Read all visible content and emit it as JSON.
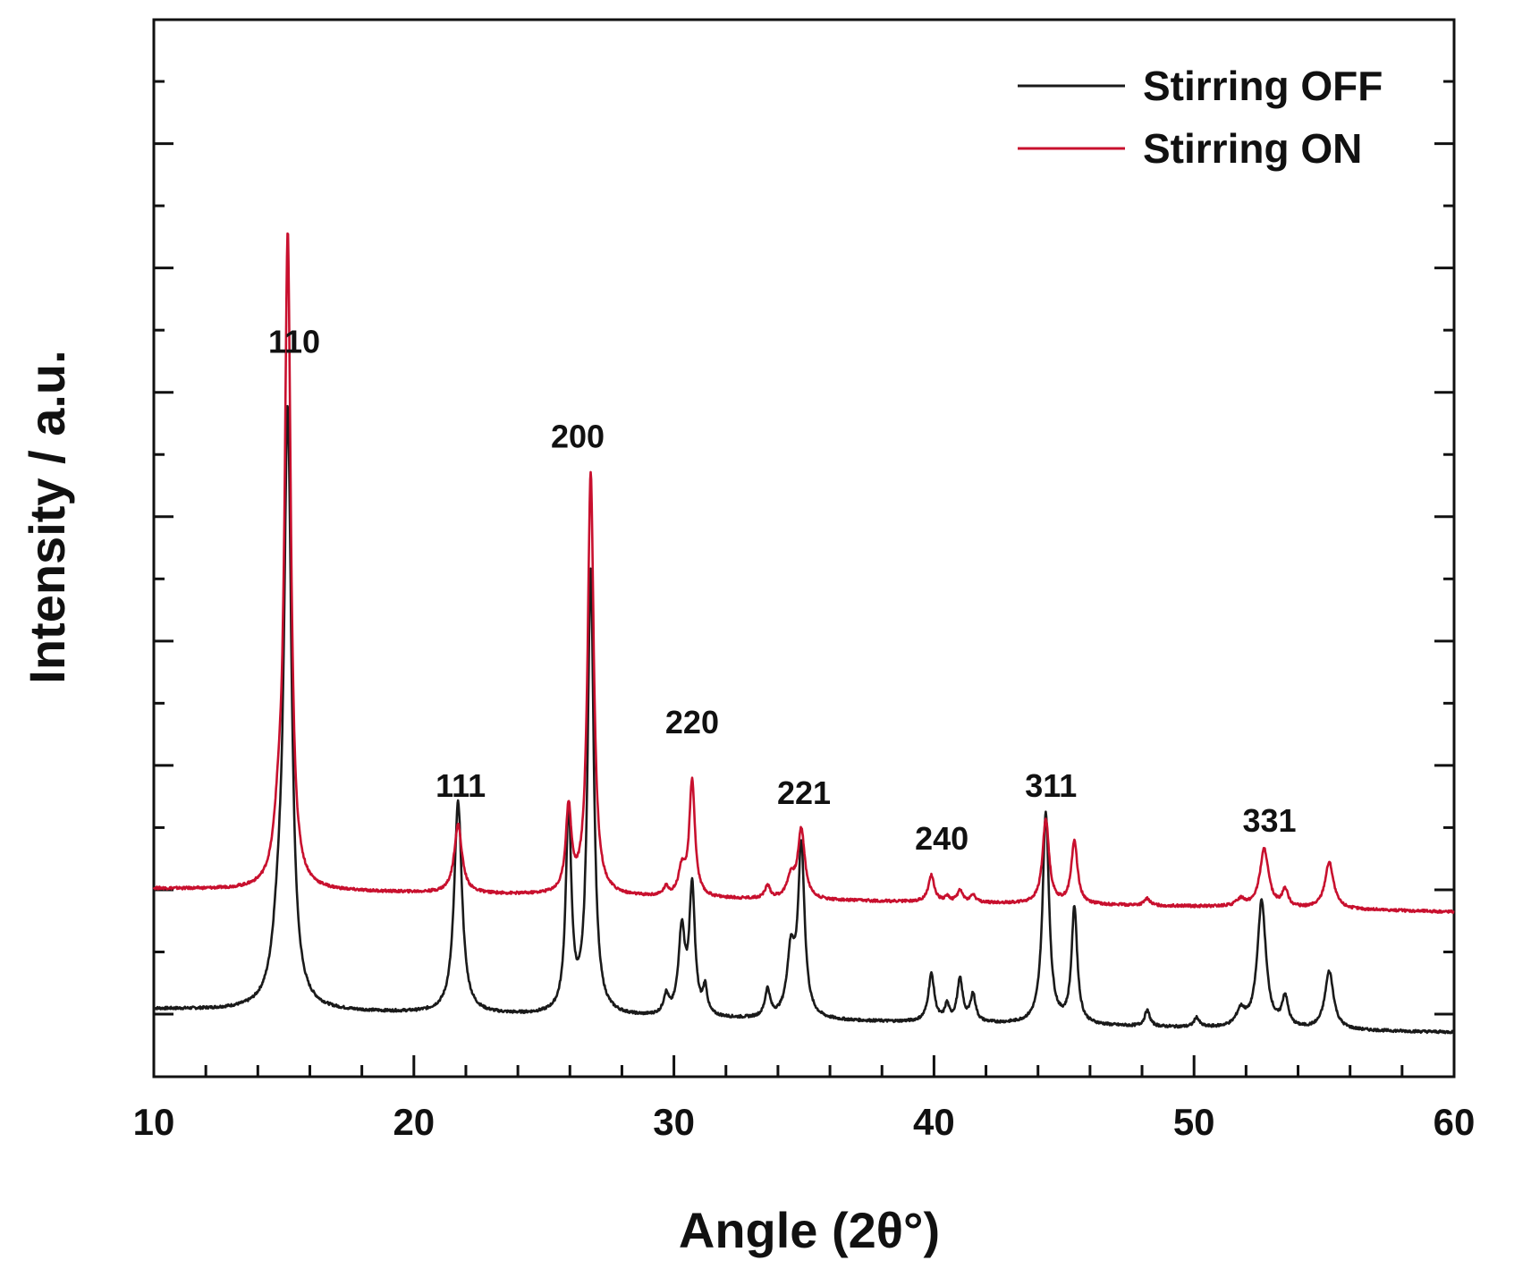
{
  "chart_data": {
    "type": "line",
    "title": "",
    "xlabel": "Angle (2θ°)",
    "ylabel": "Intensity / a.u.",
    "xlim": [
      10,
      60
    ],
    "ylim": [
      0,
      100
    ],
    "x_ticks": [
      "10",
      "20",
      "30",
      "40",
      "50",
      "60"
    ],
    "grid": false,
    "y_tick_labels_shown": false,
    "legend_position": "top-right",
    "series": [
      {
        "name": "Stirring OFF",
        "color": "#1a1a1a",
        "baseline": [
          [
            10,
            6.4
          ],
          [
            20,
            6.0
          ],
          [
            30,
            5.5
          ],
          [
            40,
            5.1
          ],
          [
            50,
            4.6
          ],
          [
            60,
            4.2
          ]
        ],
        "peaks": [
          {
            "x": 14.8,
            "h": 6,
            "w": 0.28
          },
          {
            "x": 15.15,
            "h": 55,
            "w": 0.17
          },
          {
            "x": 21.7,
            "h": 20,
            "w": 0.18
          },
          {
            "x": 25.95,
            "h": 19,
            "w": 0.13
          },
          {
            "x": 26.8,
            "h": 42,
            "w": 0.14
          },
          {
            "x": 29.7,
            "h": 1.8,
            "w": 0.12
          },
          {
            "x": 30.3,
            "h": 8,
            "w": 0.15
          },
          {
            "x": 30.7,
            "h": 12,
            "w": 0.13
          },
          {
            "x": 31.2,
            "h": 2.5,
            "w": 0.1
          },
          {
            "x": 33.6,
            "h": 2.6,
            "w": 0.12
          },
          {
            "x": 34.5,
            "h": 6,
            "w": 0.18
          },
          {
            "x": 34.9,
            "h": 16,
            "w": 0.15
          },
          {
            "x": 39.9,
            "h": 4.5,
            "w": 0.14
          },
          {
            "x": 40.5,
            "h": 1.5,
            "w": 0.1
          },
          {
            "x": 41.0,
            "h": 4,
            "w": 0.13
          },
          {
            "x": 41.5,
            "h": 2.6,
            "w": 0.12
          },
          {
            "x": 44.3,
            "h": 20,
            "w": 0.15
          },
          {
            "x": 45.4,
            "h": 11,
            "w": 0.13
          },
          {
            "x": 48.2,
            "h": 1.5,
            "w": 0.12
          },
          {
            "x": 50.1,
            "h": 0.9,
            "w": 0.12
          },
          {
            "x": 51.8,
            "h": 1.5,
            "w": 0.2
          },
          {
            "x": 52.6,
            "h": 12,
            "w": 0.2
          },
          {
            "x": 53.5,
            "h": 2.8,
            "w": 0.14
          },
          {
            "x": 55.2,
            "h": 5.5,
            "w": 0.2
          }
        ]
      },
      {
        "name": "Stirring ON",
        "color": "#c8102e",
        "baseline": [
          [
            10,
            17.8
          ],
          [
            20,
            17.4
          ],
          [
            30,
            16.9
          ],
          [
            40,
            16.5
          ],
          [
            50,
            16.1
          ],
          [
            60,
            15.6
          ]
        ],
        "peaks": [
          {
            "x": 14.8,
            "h": 5,
            "w": 0.22
          },
          {
            "x": 15.15,
            "h": 61,
            "w": 0.14
          },
          {
            "x": 21.7,
            "h": 6.5,
            "w": 0.18
          },
          {
            "x": 25.95,
            "h": 8,
            "w": 0.13
          },
          {
            "x": 26.8,
            "h": 40,
            "w": 0.14
          },
          {
            "x": 29.7,
            "h": 0.8,
            "w": 0.12
          },
          {
            "x": 30.3,
            "h": 2.5,
            "w": 0.15
          },
          {
            "x": 30.7,
            "h": 11,
            "w": 0.13
          },
          {
            "x": 33.6,
            "h": 1.2,
            "w": 0.12
          },
          {
            "x": 34.5,
            "h": 2,
            "w": 0.18
          },
          {
            "x": 34.9,
            "h": 6.5,
            "w": 0.16
          },
          {
            "x": 39.9,
            "h": 2.5,
            "w": 0.14
          },
          {
            "x": 40.5,
            "h": 0.5,
            "w": 0.1
          },
          {
            "x": 41.0,
            "h": 1.1,
            "w": 0.13
          },
          {
            "x": 41.5,
            "h": 0.7,
            "w": 0.12
          },
          {
            "x": 44.3,
            "h": 8,
            "w": 0.15
          },
          {
            "x": 45.4,
            "h": 6,
            "w": 0.14
          },
          {
            "x": 48.2,
            "h": 0.7,
            "w": 0.12
          },
          {
            "x": 51.8,
            "h": 0.7,
            "w": 0.2
          },
          {
            "x": 52.7,
            "h": 5.5,
            "w": 0.2
          },
          {
            "x": 53.5,
            "h": 1.6,
            "w": 0.14
          },
          {
            "x": 55.2,
            "h": 4.4,
            "w": 0.2
          }
        ]
      }
    ],
    "annotations": [
      {
        "text": "110",
        "x": 15.4,
        "y": 68.5
      },
      {
        "text": "111",
        "x": 21.8,
        "y": 26.5
      },
      {
        "text": "200",
        "x": 26.3,
        "y": 59.5
      },
      {
        "text": "220",
        "x": 30.7,
        "y": 32.5
      },
      {
        "text": "221",
        "x": 35.0,
        "y": 25.8
      },
      {
        "text": "240",
        "x": 40.3,
        "y": 21.5
      },
      {
        "text": "311",
        "x": 44.5,
        "y": 26.5
      },
      {
        "text": "331",
        "x": 52.9,
        "y": 23.2
      }
    ]
  }
}
